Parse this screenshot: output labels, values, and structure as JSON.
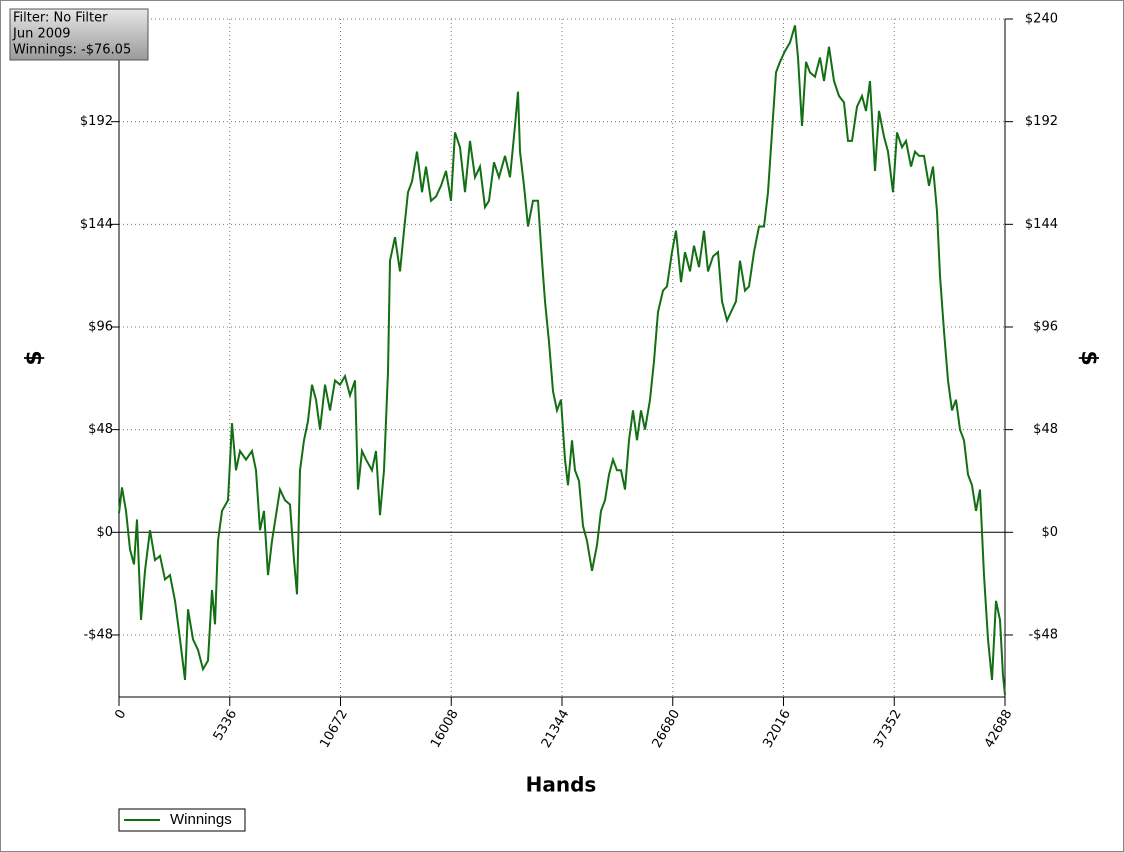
{
  "chart_data": {
    "type": "line",
    "annotations": [
      "Filter: No Filter",
      "Jun 2009",
      "Winnings: -$76.05"
    ],
    "xlabel": "Hands",
    "ylabel": "$",
    "y2label": "$",
    "xlim": [
      0,
      42688
    ],
    "xticks": [
      0,
      5336,
      10672,
      16008,
      21344,
      26680,
      32016,
      37352,
      42688
    ],
    "ylim": [
      -77,
      240
    ],
    "yticks": [
      {
        "value": -48,
        "label": "-$48"
      },
      {
        "value": 0,
        "label": "$0"
      },
      {
        "value": 48,
        "label": "$48"
      },
      {
        "value": 96,
        "label": "$96"
      },
      {
        "value": 144,
        "label": "$144"
      },
      {
        "value": 192,
        "label": "$192"
      },
      {
        "value": 240,
        "label": "$240"
      }
    ],
    "y2lim": [
      -77,
      240
    ],
    "y2ticks": [
      {
        "value": -48,
        "label": "-$48"
      },
      {
        "value": 0,
        "label": "$0"
      },
      {
        "value": 48,
        "label": "$48"
      },
      {
        "value": 96,
        "label": "$96"
      },
      {
        "value": 144,
        "label": "$144"
      },
      {
        "value": 192,
        "label": "$192"
      },
      {
        "value": 240,
        "label": "$240"
      }
    ],
    "grid": true,
    "legend": "bottom-left",
    "x": [
      0,
      145,
      337,
      530,
      723,
      867,
      1060,
      1253,
      1494,
      1734,
      1975,
      2216,
      2457,
      2698,
      2939,
      3180,
      3324,
      3565,
      3806,
      4047,
      4288,
      4481,
      4625,
      4770,
      4963,
      5252,
      5444,
      5637,
      5830,
      6119,
      6408,
      6601,
      6793,
      6986,
      7179,
      7372,
      7564,
      7757,
      7998,
      8239,
      8432,
      8576,
      8721,
      8913,
      9106,
      9299,
      9491,
      9684,
      9925,
      10166,
      10407,
      10648,
      10889,
      11130,
      11370,
      11515,
      11708,
      11900,
      12190,
      12382,
      12575,
      12768,
      12960,
      13057,
      13298,
      13539,
      13731,
      13924,
      14117,
      14358,
      14599,
      14791,
      15032,
      15273,
      15514,
      15755,
      15996,
      16188,
      16429,
      16670,
      16911,
      17152,
      17393,
      17634,
      17827,
      18068,
      18308,
      18597,
      18838,
      19079,
      19224,
      19320,
      19513,
      19706,
      19947,
      20187,
      20380,
      20525,
      20717,
      20910,
      21103,
      21296,
      21488,
      21633,
      21826,
      21970,
      22163,
      22356,
      22548,
      22789,
      23030,
      23223,
      23415,
      23608,
      23801,
      23994,
      24186,
      24379,
      24572,
      24765,
      24957,
      25150,
      25343,
      25584,
      25776,
      25969,
      26210,
      26403,
      26644,
      26836,
      27077,
      27270,
      27511,
      27704,
      27944,
      28185,
      28378,
      28619,
      28860,
      29053,
      29293,
      29486,
      29727,
      29920,
      30161,
      30353,
      30594,
      30835,
      31076,
      31269,
      31462,
      31654,
      31847,
      32088,
      32329,
      32570,
      32714,
      32907,
      33100,
      33292,
      33533,
      33774,
      33967,
      34208,
      34449,
      34690,
      34931,
      35123,
      35316,
      35557,
      35798,
      35990,
      36183,
      36424,
      36617,
      36858,
      37050,
      37291,
      37484,
      37725,
      37918,
      38159,
      38351,
      38544,
      38785,
      39026,
      39219,
      39411,
      39556,
      39749,
      39941,
      40134,
      40327,
      40519,
      40712,
      40905,
      41098,
      41290,
      41483,
      41676,
      41868,
      42061,
      42254,
      42447,
      42591,
      42688
    ],
    "series": [
      {
        "name": "Winnings",
        "color": "#136f13",
        "values": [
          9,
          21,
          10,
          -8,
          -15,
          6,
          -41,
          -18,
          1,
          -13,
          -11,
          -22,
          -20,
          -32,
          -50,
          -69,
          -36,
          -50,
          -55,
          -64,
          -60,
          -27,
          -43,
          -4,
          10,
          15,
          51,
          29,
          38,
          34,
          38,
          29,
          1,
          10,
          -20,
          -4,
          8,
          20,
          15,
          13,
          -13,
          -29,
          29,
          43,
          52,
          69,
          62,
          48,
          69,
          57,
          71,
          69,
          73,
          64,
          71,
          20,
          38,
          34,
          29,
          38,
          8,
          29,
          75,
          127,
          138,
          122,
          141,
          159,
          164,
          178,
          159,
          171,
          155,
          157,
          162,
          169,
          155,
          187,
          180,
          159,
          183,
          166,
          171,
          152,
          155,
          173,
          166,
          176,
          166,
          190,
          206,
          178,
          162,
          143,
          155,
          155,
          127,
          108,
          89,
          66,
          57,
          62,
          34,
          22,
          43,
          29,
          24,
          3,
          -4,
          -18,
          -6,
          10,
          15,
          27,
          34,
          29,
          29,
          20,
          43,
          57,
          43,
          57,
          48,
          62,
          80,
          103,
          113,
          115,
          131,
          141,
          117,
          131,
          122,
          134,
          124,
          141,
          122,
          129,
          131,
          108,
          99,
          103,
          108,
          127,
          113,
          115,
          131,
          143,
          143,
          159,
          187,
          215,
          220,
          225,
          229,
          237,
          222,
          190,
          220,
          215,
          213,
          222,
          211,
          227,
          211,
          204,
          201,
          183,
          183,
          199,
          204,
          197,
          211,
          169,
          197,
          185,
          178,
          159,
          187,
          180,
          183,
          171,
          178,
          176,
          176,
          162,
          171,
          150,
          120,
          94,
          71,
          57,
          62,
          48,
          43,
          27,
          22,
          10,
          20,
          -20,
          -50,
          -69,
          -32,
          -41,
          -67,
          -76.05
        ]
      }
    ]
  }
}
